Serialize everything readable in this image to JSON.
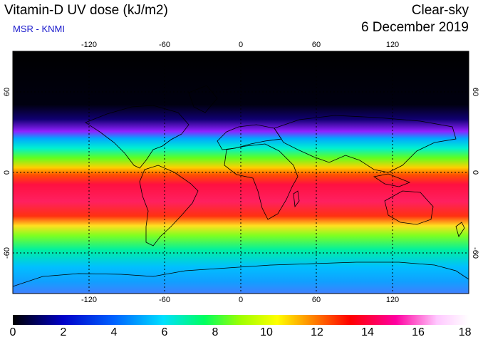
{
  "header": {
    "title": "Vitamin-D UV dose (kJ/m2)",
    "subtitle": "MSR - KNMI",
    "sky": "Clear-sky",
    "date": "6 December 2019"
  },
  "map": {
    "lon_range": [
      -180,
      180
    ],
    "lat_range": [
      -90,
      90
    ],
    "lon_ticks": [
      "-120",
      "-60",
      "0",
      "60",
      "120"
    ],
    "lat_ticks_left": [
      "60",
      "0",
      "-60"
    ],
    "lat_ticks_right": [
      "60",
      "0",
      "-60"
    ],
    "gridlines": "dotted"
  },
  "colorbar": {
    "labels": [
      "0",
      "2",
      "4",
      "6",
      "8",
      "10",
      "12",
      "14",
      "16",
      "18"
    ],
    "range": [
      0,
      18
    ],
    "colors": [
      "#000000",
      "#0000c8",
      "#0060ff",
      "#00e0ff",
      "#00ff60",
      "#a0ff00",
      "#ffff00",
      "#ff8000",
      "#ff0000",
      "#ff00a0",
      "#ffc8ff",
      "#ffffff"
    ]
  }
}
